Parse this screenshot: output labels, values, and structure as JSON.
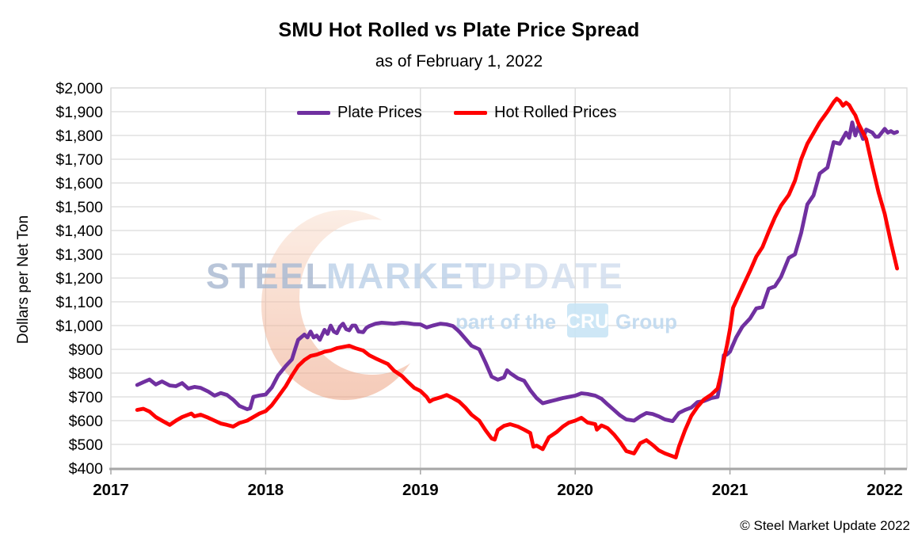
{
  "header": {
    "title": "SMU Hot Rolled vs Plate Price Spread",
    "subtitle": "as of February 1, 2022"
  },
  "footer": {
    "copyright": "© Steel Market Update 2022"
  },
  "watermark": {
    "brand_words": [
      {
        "text": "STEEL",
        "color": "#A6B6CF"
      },
      {
        "text": "MARKET",
        "color": "#BACFE7"
      },
      {
        "text": "UPDATE",
        "color": "#CEDBED"
      }
    ],
    "tagline_prefix": "part of the",
    "tagline_logo": "CRU",
    "tagline_suffix": "Group",
    "tagline_color": "#BFD9EF",
    "cru_box_color": "#C9E5F6",
    "cru_text_color": "#FFFFFF",
    "crescent_top_color": "#FAE0D0",
    "crescent_bottom_color": "#EC9E7C"
  },
  "chart_data": {
    "type": "line",
    "title": "SMU Hot Rolled vs Plate Price Spread",
    "subtitle": "as of February 1, 2022",
    "xlabel": "",
    "ylabel": "Dollars per Net Ton",
    "ylim": [
      400,
      2000
    ],
    "xlim": [
      2017,
      2022.15
    ],
    "grid": true,
    "legend_position": "top-center",
    "y_ticks": [
      {
        "v": 400,
        "label": "$400"
      },
      {
        "v": 500,
        "label": "$500"
      },
      {
        "v": 600,
        "label": "$600"
      },
      {
        "v": 700,
        "label": "$700"
      },
      {
        "v": 800,
        "label": "$800"
      },
      {
        "v": 900,
        "label": "$900"
      },
      {
        "v": 1000,
        "label": "$1,000"
      },
      {
        "v": 1100,
        "label": "$1,100"
      },
      {
        "v": 1200,
        "label": "$1,200"
      },
      {
        "v": 1300,
        "label": "$1,300"
      },
      {
        "v": 1400,
        "label": "$1,400"
      },
      {
        "v": 1500,
        "label": "$1,500"
      },
      {
        "v": 1600,
        "label": "$1,600"
      },
      {
        "v": 1700,
        "label": "$1,700"
      },
      {
        "v": 1800,
        "label": "$1,800"
      },
      {
        "v": 1900,
        "label": "$1,900"
      },
      {
        "v": 2000,
        "label": "$2,000"
      }
    ],
    "x_ticks": [
      {
        "v": 2017,
        "label": "2017"
      },
      {
        "v": 2018,
        "label": "2018"
      },
      {
        "v": 2019,
        "label": "2019"
      },
      {
        "v": 2020,
        "label": "2020"
      },
      {
        "v": 2021,
        "label": "2021"
      },
      {
        "v": 2022,
        "label": "2022"
      }
    ],
    "series": [
      {
        "name": "Plate Prices",
        "color": "#7030A0",
        "points": [
          [
            2017.17,
            750
          ],
          [
            2017.21,
            762
          ],
          [
            2017.25,
            773
          ],
          [
            2017.29,
            752
          ],
          [
            2017.33,
            765
          ],
          [
            2017.38,
            748
          ],
          [
            2017.42,
            745
          ],
          [
            2017.46,
            758
          ],
          [
            2017.5,
            735
          ],
          [
            2017.54,
            742
          ],
          [
            2017.58,
            738
          ],
          [
            2017.63,
            722
          ],
          [
            2017.67,
            705
          ],
          [
            2017.71,
            716
          ],
          [
            2017.75,
            708
          ],
          [
            2017.79,
            688
          ],
          [
            2017.83,
            662
          ],
          [
            2017.88,
            648
          ],
          [
            2017.9,
            652
          ],
          [
            2017.92,
            700
          ],
          [
            2017.96,
            706
          ],
          [
            2018.0,
            710
          ],
          [
            2018.04,
            740
          ],
          [
            2018.08,
            790
          ],
          [
            2018.13,
            830
          ],
          [
            2018.17,
            858
          ],
          [
            2018.19,
            900
          ],
          [
            2018.21,
            940
          ],
          [
            2018.25,
            962
          ],
          [
            2018.27,
            950
          ],
          [
            2018.29,
            975
          ],
          [
            2018.31,
            950
          ],
          [
            2018.33,
            958
          ],
          [
            2018.35,
            940
          ],
          [
            2018.38,
            982
          ],
          [
            2018.4,
            965
          ],
          [
            2018.42,
            1000
          ],
          [
            2018.44,
            975
          ],
          [
            2018.46,
            968
          ],
          [
            2018.48,
            995
          ],
          [
            2018.5,
            1008
          ],
          [
            2018.52,
            985
          ],
          [
            2018.54,
            980
          ],
          [
            2018.56,
            1000
          ],
          [
            2018.58,
            1000
          ],
          [
            2018.6,
            975
          ],
          [
            2018.63,
            972
          ],
          [
            2018.65,
            990
          ],
          [
            2018.67,
            998
          ],
          [
            2018.71,
            1008
          ],
          [
            2018.75,
            1012
          ],
          [
            2018.79,
            1010
          ],
          [
            2018.83,
            1008
          ],
          [
            2018.88,
            1012
          ],
          [
            2018.92,
            1010
          ],
          [
            2018.96,
            1006
          ],
          [
            2019.0,
            1005
          ],
          [
            2019.04,
            992
          ],
          [
            2019.08,
            1000
          ],
          [
            2019.13,
            1008
          ],
          [
            2019.17,
            1005
          ],
          [
            2019.21,
            998
          ],
          [
            2019.25,
            975
          ],
          [
            2019.29,
            945
          ],
          [
            2019.33,
            915
          ],
          [
            2019.38,
            900
          ],
          [
            2019.42,
            845
          ],
          [
            2019.46,
            785
          ],
          [
            2019.5,
            772
          ],
          [
            2019.54,
            782
          ],
          [
            2019.56,
            812
          ],
          [
            2019.58,
            800
          ],
          [
            2019.63,
            778
          ],
          [
            2019.67,
            768
          ],
          [
            2019.71,
            728
          ],
          [
            2019.75,
            695
          ],
          [
            2019.79,
            673
          ],
          [
            2019.83,
            680
          ],
          [
            2019.88,
            688
          ],
          [
            2019.92,
            695
          ],
          [
            2019.96,
            700
          ],
          [
            2020.0,
            705
          ],
          [
            2020.04,
            715
          ],
          [
            2020.08,
            712
          ],
          [
            2020.13,
            705
          ],
          [
            2020.17,
            692
          ],
          [
            2020.21,
            668
          ],
          [
            2020.25,
            645
          ],
          [
            2020.29,
            622
          ],
          [
            2020.33,
            605
          ],
          [
            2020.38,
            600
          ],
          [
            2020.42,
            618
          ],
          [
            2020.46,
            632
          ],
          [
            2020.5,
            628
          ],
          [
            2020.54,
            618
          ],
          [
            2020.58,
            605
          ],
          [
            2020.63,
            598
          ],
          [
            2020.67,
            632
          ],
          [
            2020.71,
            645
          ],
          [
            2020.75,
            655
          ],
          [
            2020.79,
            678
          ],
          [
            2020.83,
            682
          ],
          [
            2020.88,
            695
          ],
          [
            2020.92,
            700
          ],
          [
            2020.94,
            772
          ],
          [
            2020.96,
            875
          ],
          [
            2020.98,
            878
          ],
          [
            2021.0,
            890
          ],
          [
            2021.04,
            950
          ],
          [
            2021.08,
            995
          ],
          [
            2021.13,
            1030
          ],
          [
            2021.17,
            1072
          ],
          [
            2021.21,
            1078
          ],
          [
            2021.25,
            1155
          ],
          [
            2021.29,
            1165
          ],
          [
            2021.33,
            1205
          ],
          [
            2021.38,
            1285
          ],
          [
            2021.42,
            1300
          ],
          [
            2021.46,
            1390
          ],
          [
            2021.5,
            1510
          ],
          [
            2021.54,
            1548
          ],
          [
            2021.58,
            1640
          ],
          [
            2021.63,
            1665
          ],
          [
            2021.67,
            1772
          ],
          [
            2021.71,
            1765
          ],
          [
            2021.75,
            1812
          ],
          [
            2021.77,
            1790
          ],
          [
            2021.79,
            1855
          ],
          [
            2021.81,
            1800
          ],
          [
            2021.83,
            1838
          ],
          [
            2021.86,
            1785
          ],
          [
            2021.88,
            1825
          ],
          [
            2021.92,
            1812
          ],
          [
            2021.94,
            1795
          ],
          [
            2021.96,
            1795
          ],
          [
            2022.0,
            1828
          ],
          [
            2022.02,
            1812
          ],
          [
            2022.04,
            1818
          ],
          [
            2022.06,
            1810
          ],
          [
            2022.08,
            1815
          ]
        ]
      },
      {
        "name": "Hot Rolled Prices",
        "color": "#FF0000",
        "points": [
          [
            2017.17,
            645
          ],
          [
            2017.21,
            650
          ],
          [
            2017.25,
            638
          ],
          [
            2017.29,
            615
          ],
          [
            2017.33,
            600
          ],
          [
            2017.38,
            582
          ],
          [
            2017.42,
            600
          ],
          [
            2017.46,
            615
          ],
          [
            2017.5,
            625
          ],
          [
            2017.52,
            630
          ],
          [
            2017.54,
            618
          ],
          [
            2017.58,
            625
          ],
          [
            2017.63,
            612
          ],
          [
            2017.67,
            600
          ],
          [
            2017.71,
            588
          ],
          [
            2017.75,
            582
          ],
          [
            2017.79,
            575
          ],
          [
            2017.83,
            590
          ],
          [
            2017.88,
            600
          ],
          [
            2017.92,
            615
          ],
          [
            2017.96,
            630
          ],
          [
            2018.0,
            640
          ],
          [
            2018.04,
            665
          ],
          [
            2018.08,
            700
          ],
          [
            2018.13,
            745
          ],
          [
            2018.17,
            790
          ],
          [
            2018.21,
            830
          ],
          [
            2018.25,
            855
          ],
          [
            2018.29,
            872
          ],
          [
            2018.33,
            878
          ],
          [
            2018.38,
            890
          ],
          [
            2018.42,
            895
          ],
          [
            2018.46,
            905
          ],
          [
            2018.5,
            910
          ],
          [
            2018.54,
            915
          ],
          [
            2018.58,
            905
          ],
          [
            2018.63,
            895
          ],
          [
            2018.67,
            875
          ],
          [
            2018.71,
            862
          ],
          [
            2018.75,
            850
          ],
          [
            2018.79,
            838
          ],
          [
            2018.83,
            810
          ],
          [
            2018.88,
            788
          ],
          [
            2018.92,
            762
          ],
          [
            2018.96,
            738
          ],
          [
            2019.0,
            725
          ],
          [
            2019.04,
            700
          ],
          [
            2019.06,
            680
          ],
          [
            2019.08,
            688
          ],
          [
            2019.13,
            698
          ],
          [
            2019.17,
            708
          ],
          [
            2019.21,
            695
          ],
          [
            2019.25,
            680
          ],
          [
            2019.29,
            655
          ],
          [
            2019.33,
            625
          ],
          [
            2019.38,
            600
          ],
          [
            2019.42,
            560
          ],
          [
            2019.46,
            525
          ],
          [
            2019.48,
            520
          ],
          [
            2019.5,
            560
          ],
          [
            2019.54,
            578
          ],
          [
            2019.58,
            585
          ],
          [
            2019.63,
            575
          ],
          [
            2019.67,
            562
          ],
          [
            2019.71,
            548
          ],
          [
            2019.73,
            490
          ],
          [
            2019.75,
            495
          ],
          [
            2019.79,
            480
          ],
          [
            2019.83,
            530
          ],
          [
            2019.88,
            552
          ],
          [
            2019.92,
            575
          ],
          [
            2019.96,
            592
          ],
          [
            2020.0,
            600
          ],
          [
            2020.04,
            612
          ],
          [
            2020.08,
            592
          ],
          [
            2020.13,
            585
          ],
          [
            2020.14,
            562
          ],
          [
            2020.17,
            580
          ],
          [
            2020.21,
            568
          ],
          [
            2020.25,
            542
          ],
          [
            2020.29,
            510
          ],
          [
            2020.33,
            472
          ],
          [
            2020.38,
            462
          ],
          [
            2020.42,
            505
          ],
          [
            2020.46,
            518
          ],
          [
            2020.5,
            498
          ],
          [
            2020.54,
            475
          ],
          [
            2020.58,
            462
          ],
          [
            2020.63,
            450
          ],
          [
            2020.65,
            445
          ],
          [
            2020.67,
            490
          ],
          [
            2020.71,
            560
          ],
          [
            2020.75,
            620
          ],
          [
            2020.79,
            658
          ],
          [
            2020.83,
            688
          ],
          [
            2020.88,
            710
          ],
          [
            2020.92,
            735
          ],
          [
            2020.94,
            790
          ],
          [
            2020.96,
            855
          ],
          [
            2020.98,
            915
          ],
          [
            2021.0,
            985
          ],
          [
            2021.02,
            1075
          ],
          [
            2021.08,
            1160
          ],
          [
            2021.13,
            1230
          ],
          [
            2021.17,
            1290
          ],
          [
            2021.21,
            1330
          ],
          [
            2021.25,
            1395
          ],
          [
            2021.29,
            1455
          ],
          [
            2021.33,
            1505
          ],
          [
            2021.38,
            1550
          ],
          [
            2021.42,
            1610
          ],
          [
            2021.46,
            1700
          ],
          [
            2021.5,
            1765
          ],
          [
            2021.54,
            1810
          ],
          [
            2021.58,
            1855
          ],
          [
            2021.63,
            1900
          ],
          [
            2021.67,
            1940
          ],
          [
            2021.69,
            1955
          ],
          [
            2021.71,
            1945
          ],
          [
            2021.73,
            1925
          ],
          [
            2021.75,
            1938
          ],
          [
            2021.77,
            1928
          ],
          [
            2021.79,
            1905
          ],
          [
            2021.81,
            1885
          ],
          [
            2021.83,
            1850
          ],
          [
            2021.88,
            1785
          ],
          [
            2021.92,
            1670
          ],
          [
            2021.94,
            1615
          ],
          [
            2021.96,
            1560
          ],
          [
            2022.0,
            1470
          ],
          [
            2022.04,
            1350
          ],
          [
            2022.08,
            1240
          ]
        ]
      }
    ]
  }
}
